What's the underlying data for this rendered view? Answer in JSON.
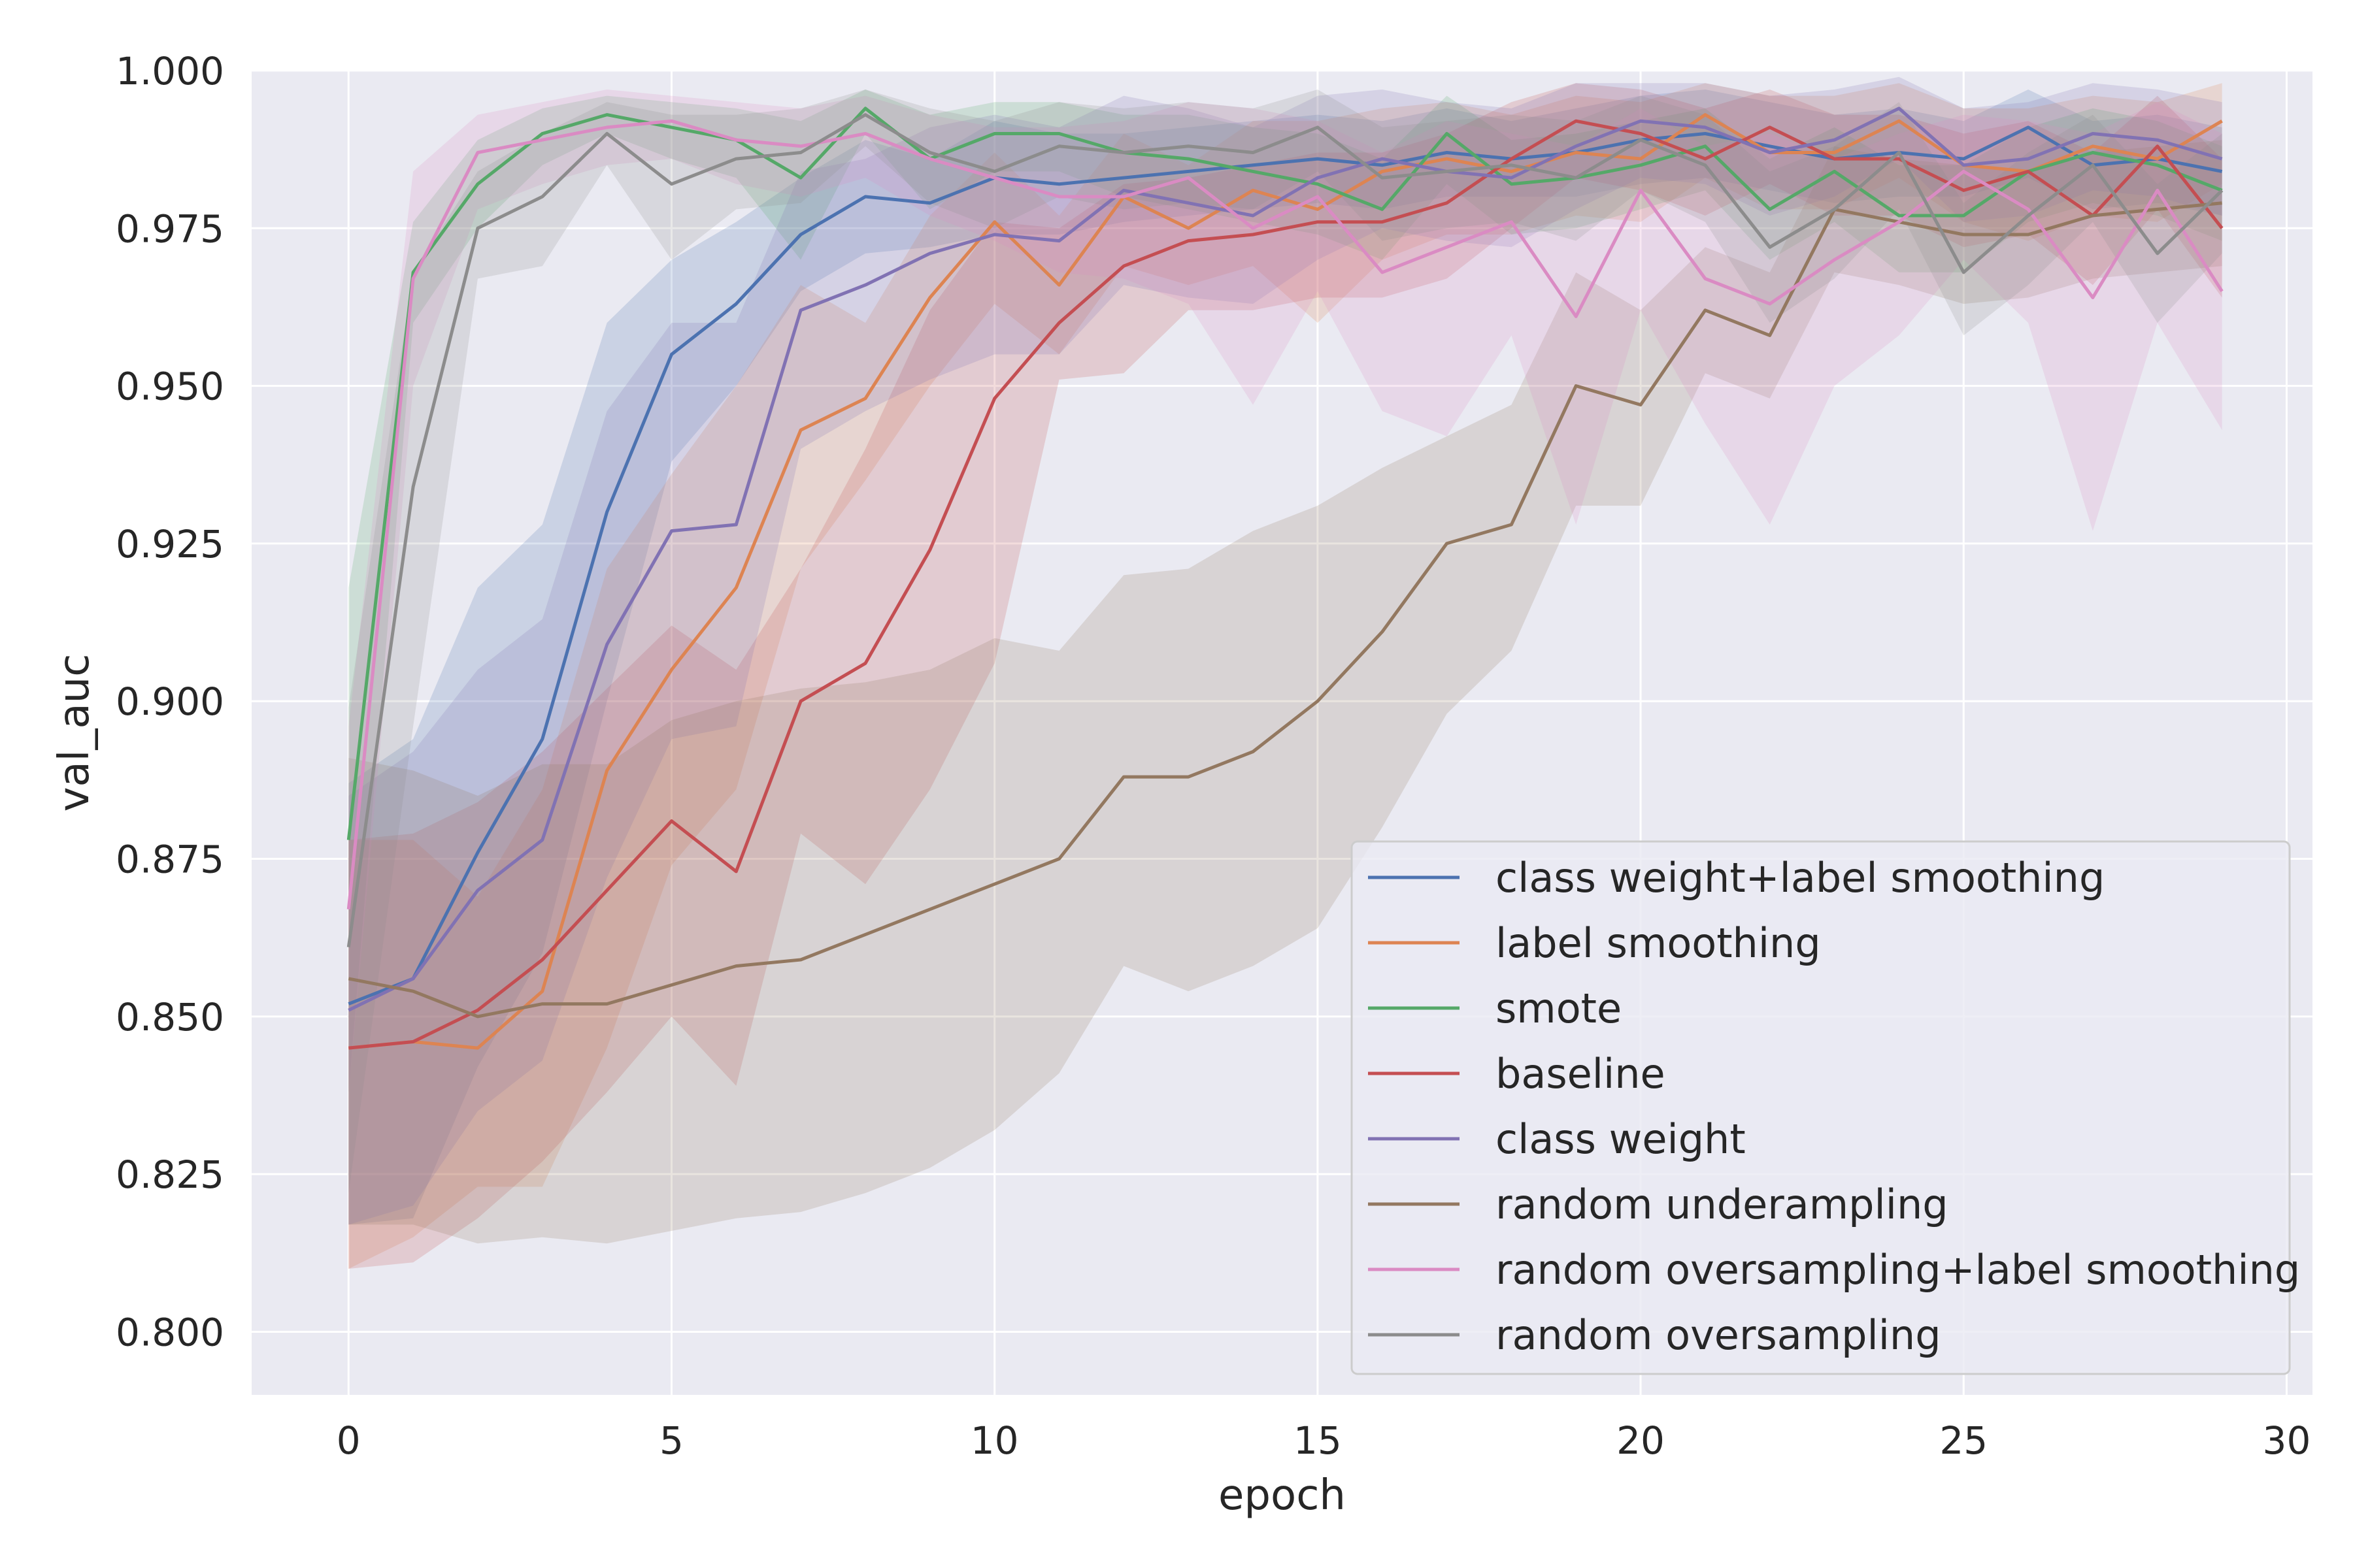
{
  "chart_data": {
    "type": "line",
    "title": "",
    "xlabel": "epoch",
    "ylabel": "val_auc",
    "xlim": [
      -1.5,
      30.4
    ],
    "ylim": [
      0.79,
      1.0
    ],
    "xticks": [
      0,
      5,
      10,
      15,
      20,
      25,
      30
    ],
    "xtick_labels": [
      "0",
      "5",
      "10",
      "15",
      "20",
      "25",
      "30"
    ],
    "yticks": [
      0.8,
      0.825,
      0.85,
      0.875,
      0.9,
      0.925,
      0.95,
      0.975,
      1.0
    ],
    "ytick_labels": [
      "0.800",
      "0.825",
      "0.850",
      "0.875",
      "0.900",
      "0.925",
      "0.950",
      "0.975",
      "1.000"
    ],
    "grid": true,
    "legend_position": "lower-right",
    "style": {
      "plot_background": "#eaeaf2",
      "grid_color": "#ffffff",
      "band_opacity": 0.2
    },
    "x": [
      0,
      1,
      2,
      3,
      4,
      5,
      6,
      7,
      8,
      9,
      10,
      11,
      12,
      13,
      14,
      15,
      16,
      17,
      18,
      19,
      20,
      21,
      22,
      23,
      24,
      25,
      26,
      27,
      28,
      29
    ],
    "series": [
      {
        "name": "class weight+label smoothing",
        "color": "#4c72b0",
        "values": [
          0.852,
          0.856,
          0.876,
          0.894,
          0.93,
          0.955,
          0.963,
          0.974,
          0.98,
          0.979,
          0.983,
          0.982,
          0.983,
          0.984,
          0.985,
          0.986,
          0.985,
          0.987,
          0.986,
          0.987,
          0.989,
          0.99,
          0.988,
          0.986,
          0.987,
          0.986,
          0.991,
          0.985,
          0.986,
          0.984
        ],
        "lower": [
          0.817,
          0.818,
          0.842,
          0.86,
          0.9,
          0.938,
          0.95,
          0.965,
          0.971,
          0.972,
          0.974,
          0.974,
          0.976,
          0.977,
          0.978,
          0.979,
          0.978,
          0.98,
          0.98,
          0.98,
          0.982,
          0.983,
          0.981,
          0.979,
          0.98,
          0.98,
          0.983,
          0.978,
          0.979,
          0.977
        ],
        "upper": [
          0.887,
          0.894,
          0.918,
          0.928,
          0.96,
          0.97,
          0.976,
          0.983,
          0.989,
          0.986,
          0.992,
          0.99,
          0.99,
          0.991,
          0.992,
          0.993,
          0.992,
          0.994,
          0.992,
          0.994,
          0.996,
          0.997,
          0.995,
          0.993,
          0.994,
          0.992,
          0.997,
          0.992,
          0.993,
          0.991
        ]
      },
      {
        "name": "label smoothing",
        "color": "#dd8452",
        "values": [
          0.845,
          0.846,
          0.845,
          0.854,
          0.889,
          0.905,
          0.918,
          0.943,
          0.948,
          0.964,
          0.976,
          0.966,
          0.98,
          0.975,
          0.981,
          0.978,
          0.984,
          0.986,
          0.984,
          0.987,
          0.986,
          0.993,
          0.987,
          0.987,
          0.992,
          0.985,
          0.984,
          0.988,
          0.986,
          0.992
        ],
        "lower": [
          0.81,
          0.815,
          0.823,
          0.823,
          0.845,
          0.874,
          0.886,
          0.921,
          0.935,
          0.95,
          0.963,
          0.955,
          0.969,
          0.966,
          0.969,
          0.96,
          0.97,
          0.974,
          0.974,
          0.977,
          0.976,
          0.983,
          0.978,
          0.978,
          0.983,
          0.976,
          0.973,
          0.977,
          0.976,
          0.982
        ],
        "upper": [
          0.878,
          0.878,
          0.869,
          0.886,
          0.921,
          0.936,
          0.95,
          0.966,
          0.96,
          0.977,
          0.987,
          0.977,
          0.99,
          0.985,
          0.992,
          0.992,
          0.994,
          0.995,
          0.993,
          0.996,
          0.995,
          0.998,
          0.996,
          0.996,
          0.998,
          0.994,
          0.994,
          0.996,
          0.995,
          0.998
        ]
      },
      {
        "name": "smote",
        "color": "#55a868",
        "values": [
          0.878,
          0.968,
          0.982,
          0.99,
          0.993,
          0.991,
          0.989,
          0.983,
          0.994,
          0.986,
          0.99,
          0.99,
          0.987,
          0.986,
          0.984,
          0.982,
          0.978,
          0.99,
          0.982,
          0.983,
          0.985,
          0.988,
          0.978,
          0.984,
          0.977,
          0.977,
          0.984,
          0.987,
          0.985,
          0.981
        ],
        "lower": [
          0.838,
          0.96,
          0.975,
          0.985,
          0.99,
          0.986,
          0.983,
          0.97,
          0.99,
          0.978,
          0.984,
          0.984,
          0.98,
          0.978,
          0.976,
          0.974,
          0.97,
          0.982,
          0.974,
          0.975,
          0.978,
          0.981,
          0.97,
          0.976,
          0.968,
          0.968,
          0.976,
          0.979,
          0.977,
          0.973
        ],
        "upper": [
          0.918,
          0.976,
          0.989,
          0.994,
          0.996,
          0.995,
          0.994,
          0.992,
          0.997,
          0.993,
          0.995,
          0.995,
          0.993,
          0.993,
          0.991,
          0.99,
          0.986,
          0.996,
          0.989,
          0.99,
          0.992,
          0.994,
          0.986,
          0.991,
          0.985,
          0.985,
          0.991,
          0.994,
          0.992,
          0.988
        ]
      },
      {
        "name": "baseline",
        "color": "#c44e52",
        "values": [
          0.845,
          0.846,
          0.851,
          0.859,
          0.87,
          0.881,
          0.873,
          0.9,
          0.906,
          0.924,
          0.948,
          0.96,
          0.969,
          0.973,
          0.974,
          0.976,
          0.976,
          0.979,
          0.986,
          0.992,
          0.99,
          0.986,
          0.991,
          0.986,
          0.986,
          0.981,
          0.984,
          0.977,
          0.988,
          0.975
        ],
        "lower": [
          0.81,
          0.811,
          0.818,
          0.827,
          0.838,
          0.85,
          0.839,
          0.879,
          0.871,
          0.886,
          0.906,
          0.951,
          0.952,
          0.962,
          0.962,
          0.964,
          0.964,
          0.967,
          0.975,
          0.983,
          0.981,
          0.977,
          0.982,
          0.977,
          0.977,
          0.972,
          0.974,
          0.966,
          0.978,
          0.964
        ],
        "upper": [
          0.878,
          0.879,
          0.884,
          0.892,
          0.902,
          0.912,
          0.905,
          0.921,
          0.94,
          0.962,
          0.976,
          0.975,
          0.982,
          0.983,
          0.985,
          0.987,
          0.987,
          0.99,
          0.995,
          0.998,
          0.997,
          0.994,
          0.997,
          0.993,
          0.993,
          0.99,
          0.992,
          0.987,
          0.996,
          0.986
        ]
      },
      {
        "name": "class weight",
        "color": "#8172b3",
        "values": [
          0.851,
          0.856,
          0.87,
          0.878,
          0.909,
          0.927,
          0.928,
          0.962,
          0.966,
          0.971,
          0.974,
          0.973,
          0.981,
          0.979,
          0.977,
          0.983,
          0.986,
          0.984,
          0.983,
          0.988,
          0.992,
          0.991,
          0.987,
          0.989,
          0.994,
          0.985,
          0.986,
          0.99,
          0.989,
          0.986
        ],
        "lower": [
          0.817,
          0.82,
          0.835,
          0.843,
          0.872,
          0.894,
          0.896,
          0.94,
          0.946,
          0.951,
          0.955,
          0.955,
          0.966,
          0.964,
          0.963,
          0.97,
          0.975,
          0.973,
          0.972,
          0.978,
          0.983,
          0.982,
          0.977,
          0.98,
          0.986,
          0.976,
          0.977,
          0.981,
          0.98,
          0.977
        ],
        "upper": [
          0.885,
          0.892,
          0.905,
          0.913,
          0.946,
          0.96,
          0.96,
          0.984,
          0.986,
          0.991,
          0.993,
          0.991,
          0.996,
          0.994,
          0.991,
          0.996,
          0.997,
          0.995,
          0.994,
          0.998,
          0.998,
          0.998,
          0.996,
          0.997,
          0.999,
          0.994,
          0.995,
          0.998,
          0.997,
          0.995
        ]
      },
      {
        "name": "random underampling",
        "color": "#937860",
        "values": [
          0.856,
          0.854,
          0.85,
          0.852,
          0.852,
          0.855,
          0.858,
          0.859,
          0.863,
          0.867,
          0.871,
          0.875,
          0.888,
          0.888,
          0.892,
          0.9,
          0.911,
          0.925,
          0.928,
          0.95,
          0.947,
          0.962,
          0.958,
          0.978,
          0.976,
          0.974,
          0.974,
          0.977,
          0.978,
          0.979
        ],
        "lower": [
          0.817,
          0.817,
          0.814,
          0.815,
          0.814,
          0.816,
          0.818,
          0.819,
          0.822,
          0.826,
          0.832,
          0.841,
          0.858,
          0.854,
          0.858,
          0.864,
          0.88,
          0.898,
          0.908,
          0.931,
          0.931,
          0.952,
          0.948,
          0.968,
          0.966,
          0.963,
          0.964,
          0.967,
          0.968,
          0.969
        ],
        "upper": [
          0.891,
          0.889,
          0.885,
          0.89,
          0.89,
          0.897,
          0.9,
          0.902,
          0.903,
          0.905,
          0.91,
          0.908,
          0.92,
          0.921,
          0.927,
          0.931,
          0.937,
          0.942,
          0.947,
          0.968,
          0.962,
          0.972,
          0.968,
          0.988,
          0.986,
          0.985,
          0.984,
          0.987,
          0.988,
          0.989
        ]
      },
      {
        "name": "random oversampling+label smoothing",
        "color": "#da8bc3",
        "values": [
          0.867,
          0.967,
          0.987,
          0.989,
          0.991,
          0.992,
          0.989,
          0.988,
          0.99,
          0.986,
          0.983,
          0.98,
          0.98,
          0.983,
          0.975,
          0.98,
          0.968,
          0.972,
          0.976,
          0.961,
          0.981,
          0.967,
          0.963,
          0.97,
          0.976,
          0.984,
          0.978,
          0.964,
          0.981,
          0.965
        ],
        "lower": [
          0.838,
          0.95,
          0.978,
          0.982,
          0.985,
          0.986,
          0.982,
          0.98,
          0.983,
          0.977,
          0.973,
          0.968,
          0.967,
          0.963,
          0.947,
          0.965,
          0.946,
          0.942,
          0.958,
          0.928,
          0.962,
          0.944,
          0.928,
          0.95,
          0.958,
          0.97,
          0.96,
          0.927,
          0.96,
          0.943
        ],
        "upper": [
          0.896,
          0.984,
          0.993,
          0.995,
          0.997,
          0.996,
          0.995,
          0.994,
          0.996,
          0.993,
          0.991,
          0.991,
          0.992,
          0.995,
          0.994,
          0.992,
          0.987,
          0.992,
          0.99,
          0.988,
          0.994,
          0.988,
          0.99,
          0.986,
          0.99,
          0.993,
          0.992,
          0.99,
          0.995,
          0.99
        ]
      },
      {
        "name": "random oversampling",
        "color": "#8c8c8c",
        "values": [
          0.861,
          0.934,
          0.975,
          0.98,
          0.99,
          0.982,
          0.986,
          0.987,
          0.993,
          0.987,
          0.984,
          0.988,
          0.987,
          0.988,
          0.987,
          0.991,
          0.983,
          0.984,
          0.985,
          0.983,
          0.989,
          0.985,
          0.972,
          0.978,
          0.987,
          0.968,
          0.977,
          0.985,
          0.971,
          0.981
        ],
        "lower": [
          0.822,
          0.896,
          0.967,
          0.969,
          0.985,
          0.97,
          0.978,
          0.979,
          0.988,
          0.979,
          0.975,
          0.98,
          0.978,
          0.979,
          0.978,
          0.984,
          0.973,
          0.975,
          0.976,
          0.973,
          0.981,
          0.976,
          0.96,
          0.967,
          0.978,
          0.958,
          0.966,
          0.976,
          0.96,
          0.971
        ],
        "upper": [
          0.899,
          0.968,
          0.984,
          0.99,
          0.995,
          0.993,
          0.993,
          0.994,
          0.997,
          0.994,
          0.992,
          0.995,
          0.994,
          0.995,
          0.994,
          0.997,
          0.991,
          0.992,
          0.993,
          0.992,
          0.996,
          0.993,
          0.984,
          0.988,
          0.995,
          0.979,
          0.987,
          0.993,
          0.982,
          0.99
        ]
      }
    ]
  }
}
